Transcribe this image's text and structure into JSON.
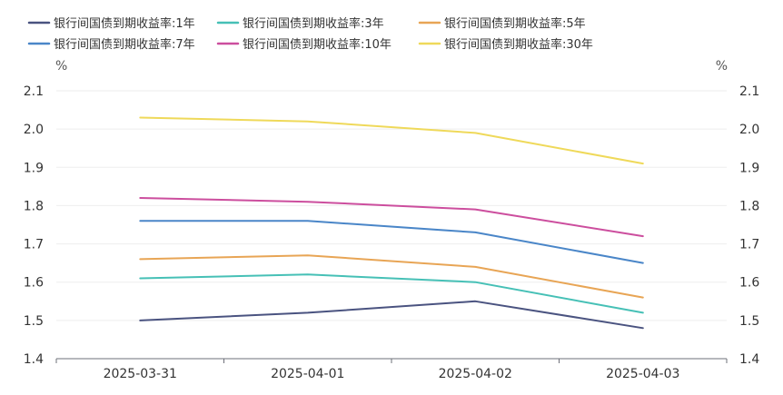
{
  "chart_data": {
    "type": "line",
    "categories": [
      "2025-03-31",
      "2025-04-01",
      "2025-04-02",
      "2025-04-03"
    ],
    "series": [
      {
        "name": "银行间国债到期收益率:1年",
        "color": "#4a5380",
        "values": [
          1.5,
          1.52,
          1.55,
          1.48
        ]
      },
      {
        "name": "银行间国债到期收益率:3年",
        "color": "#46c0b6",
        "values": [
          1.61,
          1.62,
          1.6,
          1.52
        ]
      },
      {
        "name": "银行间国债到期收益率:5年",
        "color": "#e8a555",
        "values": [
          1.66,
          1.67,
          1.64,
          1.56
        ]
      },
      {
        "name": "银行间国债到期收益率:7年",
        "color": "#4a86c8",
        "values": [
          1.76,
          1.76,
          1.73,
          1.65
        ]
      },
      {
        "name": "银行间国债到期收益率:10年",
        "color": "#cc4e9e",
        "values": [
          1.82,
          1.81,
          1.79,
          1.72
        ]
      },
      {
        "name": "银行间国债到期收益率:30年",
        "color": "#efd95a",
        "values": [
          2.03,
          2.02,
          1.99,
          1.91
        ]
      }
    ],
    "ylim": [
      1.4,
      2.1
    ],
    "yticks": [
      "1.4",
      "1.5",
      "1.6",
      "1.7",
      "1.8",
      "1.9",
      "2.0",
      "2.1"
    ],
    "y_unit_left": "%",
    "y_unit_right": "%",
    "grid": true,
    "legend_position": "top-left"
  }
}
